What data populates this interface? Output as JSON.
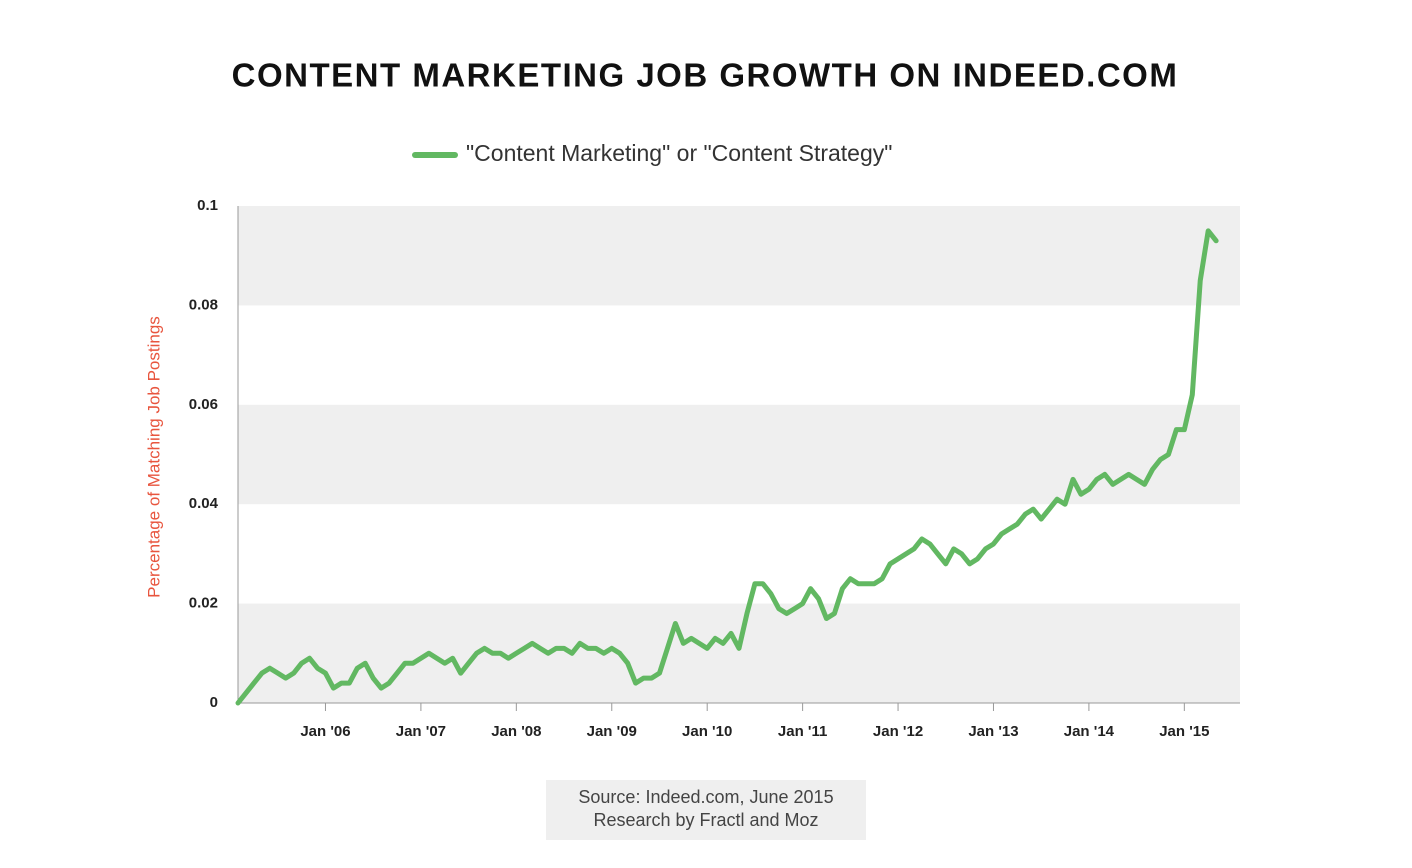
{
  "chart_data": {
    "type": "line",
    "title": "CONTENT MARKETING JOB GROWTH ON INDEED.COM",
    "y_label": "Percentage of Matching Job Postings",
    "source": [
      "Source: Indeed.com, June 2015",
      "Research by Fractl and Moz"
    ],
    "x": [
      "2005-02",
      "2005-03",
      "2005-04",
      "2005-05",
      "2005-06",
      "2005-07",
      "2005-08",
      "2005-09",
      "2005-10",
      "2005-11",
      "2005-12",
      "2006-01",
      "2006-02",
      "2006-03",
      "2006-04",
      "2006-05",
      "2006-06",
      "2006-07",
      "2006-08",
      "2006-09",
      "2006-10",
      "2006-11",
      "2006-12",
      "2007-01",
      "2007-02",
      "2007-03",
      "2007-04",
      "2007-05",
      "2007-06",
      "2007-07",
      "2007-08",
      "2007-09",
      "2007-10",
      "2007-11",
      "2007-12",
      "2008-01",
      "2008-02",
      "2008-03",
      "2008-04",
      "2008-05",
      "2008-06",
      "2008-07",
      "2008-08",
      "2008-09",
      "2008-10",
      "2008-11",
      "2008-12",
      "2009-01",
      "2009-02",
      "2009-03",
      "2009-04",
      "2009-05",
      "2009-06",
      "2009-07",
      "2009-08",
      "2009-09",
      "2009-10",
      "2009-11",
      "2009-12",
      "2010-01",
      "2010-02",
      "2010-03",
      "2010-04",
      "2010-05",
      "2010-06",
      "2010-07",
      "2010-08",
      "2010-09",
      "2010-10",
      "2010-11",
      "2010-12",
      "2011-01",
      "2011-02",
      "2011-03",
      "2011-04",
      "2011-05",
      "2011-06",
      "2011-07",
      "2011-08",
      "2011-09",
      "2011-10",
      "2011-11",
      "2011-12",
      "2012-01",
      "2012-02",
      "2012-03",
      "2012-04",
      "2012-05",
      "2012-06",
      "2012-07",
      "2012-08",
      "2012-09",
      "2012-10",
      "2012-11",
      "2012-12",
      "2013-01",
      "2013-02",
      "2013-03",
      "2013-04",
      "2013-05",
      "2013-06",
      "2013-07",
      "2013-08",
      "2013-09",
      "2013-10",
      "2013-11",
      "2013-12",
      "2014-01",
      "2014-02",
      "2014-03",
      "2014-04",
      "2014-05",
      "2014-06",
      "2014-07",
      "2014-08",
      "2014-09",
      "2014-10",
      "2014-11",
      "2014-12",
      "2015-01",
      "2015-02",
      "2015-03",
      "2015-04",
      "2015-05"
    ],
    "series": [
      {
        "name": "\"Content Marketing\" or \"Content Strategy\"",
        "color": "#62b862",
        "values": [
          0,
          0.002,
          0.004,
          0.006,
          0.007,
          0.006,
          0.005,
          0.006,
          0.008,
          0.009,
          0.007,
          0.006,
          0.003,
          0.004,
          0.004,
          0.007,
          0.008,
          0.005,
          0.003,
          0.004,
          0.006,
          0.008,
          0.008,
          0.009,
          0.01,
          0.009,
          0.008,
          0.009,
          0.006,
          0.008,
          0.01,
          0.011,
          0.01,
          0.01,
          0.009,
          0.01,
          0.011,
          0.012,
          0.011,
          0.01,
          0.011,
          0.011,
          0.01,
          0.012,
          0.011,
          0.011,
          0.01,
          0.011,
          0.01,
          0.008,
          0.004,
          0.005,
          0.005,
          0.006,
          0.011,
          0.016,
          0.012,
          0.013,
          0.012,
          0.011,
          0.013,
          0.012,
          0.014,
          0.011,
          0.018,
          0.024,
          0.024,
          0.022,
          0.019,
          0.018,
          0.019,
          0.02,
          0.023,
          0.021,
          0.017,
          0.018,
          0.023,
          0.025,
          0.024,
          0.024,
          0.024,
          0.025,
          0.028,
          0.029,
          0.03,
          0.031,
          0.033,
          0.032,
          0.03,
          0.028,
          0.031,
          0.03,
          0.028,
          0.029,
          0.031,
          0.032,
          0.034,
          0.035,
          0.036,
          0.038,
          0.039,
          0.037,
          0.039,
          0.041,
          0.04,
          0.045,
          0.042,
          0.043,
          0.045,
          0.046,
          0.044,
          0.045,
          0.046,
          0.045,
          0.044,
          0.047,
          0.049,
          0.05,
          0.055,
          0.055,
          0.062,
          0.085,
          0.095,
          0.093
        ]
      }
    ],
    "xlim": [
      "2005-02",
      "2015-08"
    ],
    "xticks": [
      {
        "value": "2006-01",
        "label": "Jan '06"
      },
      {
        "value": "2007-01",
        "label": "Jan '07"
      },
      {
        "value": "2008-01",
        "label": "Jan '08"
      },
      {
        "value": "2009-01",
        "label": "Jan '09"
      },
      {
        "value": "2010-01",
        "label": "Jan '10"
      },
      {
        "value": "2011-01",
        "label": "Jan '11"
      },
      {
        "value": "2012-01",
        "label": "Jan '12"
      },
      {
        "value": "2013-01",
        "label": "Jan '13"
      },
      {
        "value": "2014-01",
        "label": "Jan '14"
      },
      {
        "value": "2015-01",
        "label": "Jan '15"
      }
    ],
    "ylim": [
      0,
      0.1
    ],
    "yticks": [
      0,
      0.02,
      0.04,
      0.06,
      0.08,
      0.1
    ],
    "grid_bands": true
  }
}
